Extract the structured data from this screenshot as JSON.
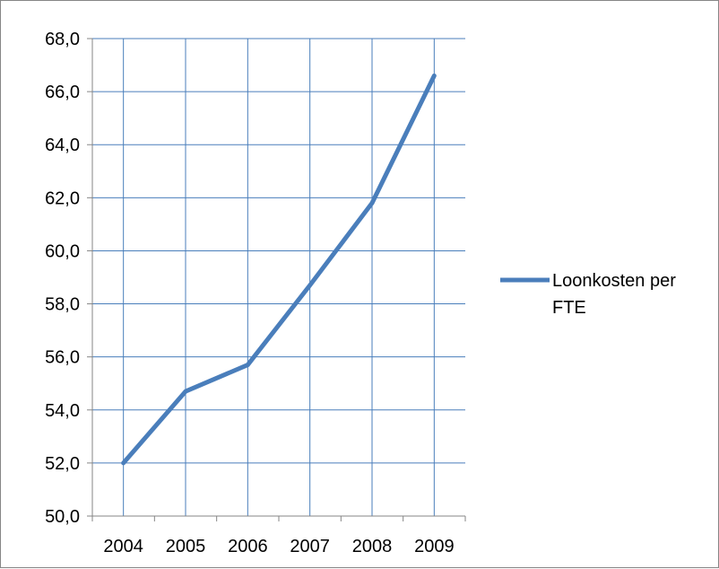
{
  "chart_data": {
    "type": "line",
    "title": "",
    "xlabel": "",
    "ylabel": "",
    "categories": [
      "2004",
      "2005",
      "2006",
      "2007",
      "2008",
      "2009"
    ],
    "series": [
      {
        "name": "Loonkosten per FTE",
        "values": [
          52.0,
          54.7,
          55.7,
          58.7,
          61.8,
          66.6
        ],
        "color": "#4a7ebb"
      }
    ],
    "ylim": [
      50,
      68
    ],
    "y_ticks": [
      "50,0",
      "52,0",
      "54,0",
      "56,0",
      "58,0",
      "60,0",
      "62,0",
      "64,0",
      "66,0",
      "68,0"
    ],
    "grid": {
      "horizontal": true,
      "vertical": true,
      "color": "#4a7ebb"
    },
    "legend": {
      "placement": "right",
      "lines": [
        "Loonkosten per",
        "FTE"
      ]
    },
    "axis_color": "#868686"
  }
}
